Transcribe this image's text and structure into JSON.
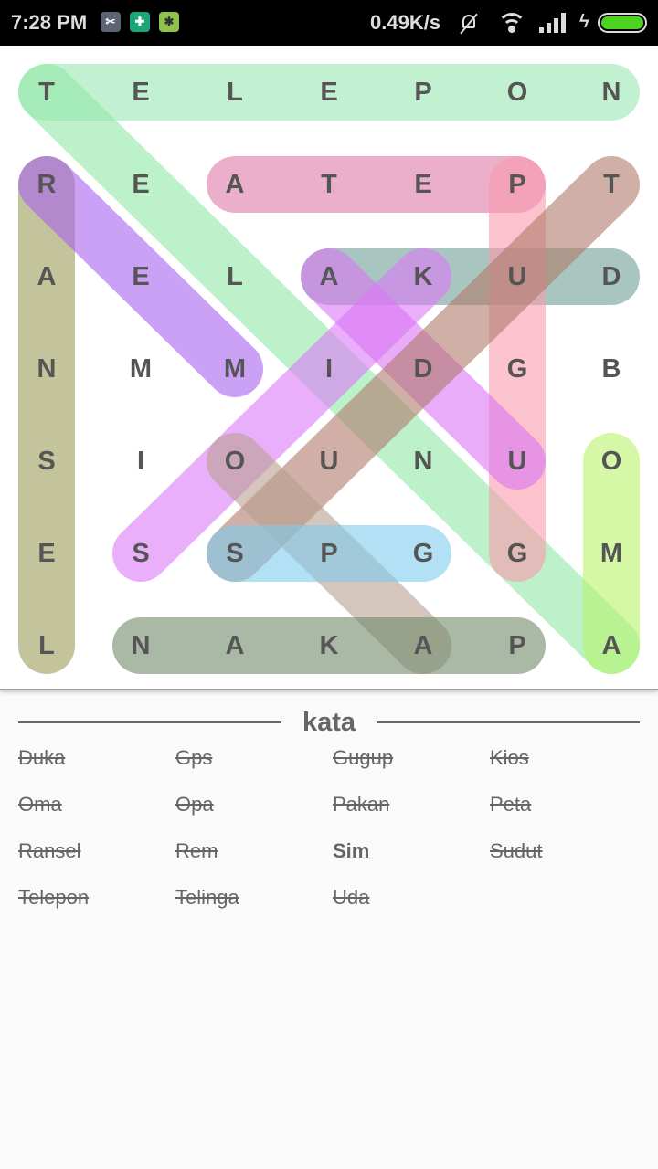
{
  "status_bar": {
    "time": "7:28 PM",
    "net_speed": "0.49K/s",
    "icons": [
      "scissors-app-icon",
      "shield-app-icon",
      "bug-app-icon",
      "mute-icon",
      "wifi-icon",
      "signal-icon",
      "charging-icon",
      "battery-icon"
    ],
    "battery_level": 1.0
  },
  "grid": [
    [
      "T",
      "E",
      "L",
      "E",
      "P",
      "O",
      "N"
    ],
    [
      "R",
      "E",
      "A",
      "T",
      "E",
      "P",
      "T"
    ],
    [
      "A",
      "E",
      "L",
      "A",
      "K",
      "U",
      "D"
    ],
    [
      "N",
      "M",
      "M",
      "I",
      "D",
      "G",
      "B"
    ],
    [
      "S",
      "I",
      "O",
      "U",
      "N",
      "U",
      "O"
    ],
    [
      "E",
      "S",
      "S",
      "P",
      "G",
      "G",
      "M"
    ],
    [
      "L",
      "N",
      "A",
      "K",
      "A",
      "P",
      "A"
    ]
  ],
  "highlights": [
    {
      "word": "Telepon",
      "from": [
        0,
        0
      ],
      "to": [
        0,
        6
      ],
      "color": "#9ae8b4"
    },
    {
      "word": "Ransel",
      "from": [
        1,
        0
      ],
      "to": [
        6,
        0
      ],
      "color": "#9c9c5a"
    },
    {
      "word": "Telinga",
      "from": [
        0,
        0
      ],
      "to": [
        6,
        6
      ],
      "color": "#8fe8a6"
    },
    {
      "word": "Peta",
      "from": [
        1,
        5
      ],
      "to": [
        1,
        2
      ],
      "color": "#e07aa8"
    },
    {
      "word": "Rem",
      "from": [
        1,
        0
      ],
      "to": [
        3,
        2
      ],
      "color": "#a962f0"
    },
    {
      "word": "Duka",
      "from": [
        2,
        6
      ],
      "to": [
        2,
        3
      ],
      "color": "#6f9e94"
    },
    {
      "word": "Gugup",
      "from": [
        5,
        5
      ],
      "to": [
        1,
        5
      ],
      "color": "#fa9aae"
    },
    {
      "word": "Kios",
      "from": [
        2,
        4
      ],
      "to": [
        5,
        1
      ],
      "color": "#dc7af8"
    },
    {
      "word": "Uda",
      "from": [
        4,
        5
      ],
      "to": [
        2,
        3
      ],
      "color": "#d874f4"
    },
    {
      "word": "Sudut",
      "from": [
        5,
        2
      ],
      "to": [
        1,
        6
      ],
      "color": "#b07a6a"
    },
    {
      "word": "Opa",
      "from": [
        4,
        2
      ],
      "to": [
        6,
        4
      ],
      "color": "#b8a090"
    },
    {
      "word": "Gps",
      "from": [
        5,
        4
      ],
      "to": [
        5,
        2
      ],
      "color": "#7ecbee"
    },
    {
      "word": "Oma",
      "from": [
        4,
        6
      ],
      "to": [
        6,
        6
      ],
      "color": "#b8f46a"
    },
    {
      "word": "Pakan",
      "from": [
        6,
        5
      ],
      "to": [
        6,
        1
      ],
      "color": "#6f8a6a"
    }
  ],
  "word_list": {
    "title": "kata",
    "words": [
      {
        "text": "Duka",
        "found": true
      },
      {
        "text": "Gps",
        "found": true
      },
      {
        "text": "Gugup",
        "found": true
      },
      {
        "text": "Kios",
        "found": true
      },
      {
        "text": "Oma",
        "found": true
      },
      {
        "text": "Opa",
        "found": true
      },
      {
        "text": "Pakan",
        "found": true
      },
      {
        "text": "Peta",
        "found": true
      },
      {
        "text": "Ransel",
        "found": true
      },
      {
        "text": "Rem",
        "found": true
      },
      {
        "text": "Sim",
        "found": false
      },
      {
        "text": "Sudut",
        "found": true
      },
      {
        "text": "Telepon",
        "found": true
      },
      {
        "text": "Telinga",
        "found": true
      },
      {
        "text": "Uda",
        "found": true
      }
    ]
  }
}
